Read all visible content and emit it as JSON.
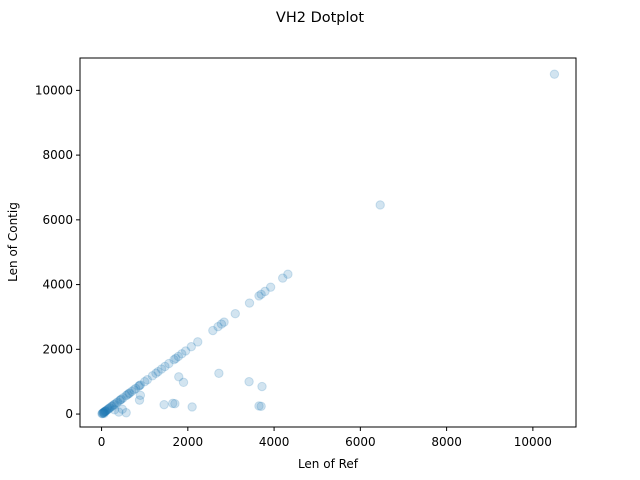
{
  "chart_data": {
    "type": "scatter",
    "title": "VH2 Dotplot",
    "xlabel": "Len of Ref",
    "ylabel": "Len of Contig",
    "xlim": [
      -500,
      11000
    ],
    "ylim": [
      -400,
      11000
    ],
    "xticks": [
      0,
      2000,
      4000,
      6000,
      8000,
      10000
    ],
    "yticks": [
      0,
      2000,
      4000,
      6000,
      8000,
      10000
    ],
    "xtick_labels": [
      "0",
      "2000",
      "4000",
      "6000",
      "8000",
      "10000"
    ],
    "ytick_labels": [
      "0",
      "2000",
      "4000",
      "6000",
      "8000",
      "10000"
    ],
    "grid": false,
    "marker_color": "#1f77b4",
    "marker_alpha": 0.2,
    "series": [
      {
        "x": [
          10500,
          6460,
          4320,
          4200,
          3920,
          3790,
          3700,
          3650,
          3430,
          3100,
          2840,
          2780,
          2700,
          2580,
          2230,
          2080,
          1950,
          1860,
          1780,
          1720,
          1680,
          1560,
          1470,
          1390,
          1310,
          1260,
          1180,
          1060,
          1000,
          900,
          880,
          860,
          790,
          750,
          700,
          650,
          630,
          600,
          570,
          500,
          460,
          440,
          420,
          370,
          340,
          300,
          280,
          250,
          230,
          200,
          180,
          160,
          140,
          120,
          100,
          90,
          80,
          70,
          60,
          50,
          40,
          30,
          20,
          10,
          60,
          3420,
          3720,
          1790,
          1900,
          2720,
          3650,
          3700,
          1700,
          1650,
          1450,
          2100,
          900,
          880,
          570,
          480,
          300,
          400
        ],
        "y": [
          10500,
          6460,
          4320,
          4200,
          3920,
          3790,
          3700,
          3650,
          3430,
          3100,
          2840,
          2780,
          2700,
          2580,
          2230,
          2080,
          1950,
          1860,
          1780,
          1720,
          1680,
          1560,
          1470,
          1390,
          1310,
          1260,
          1180,
          1060,
          1000,
          900,
          880,
          860,
          790,
          750,
          700,
          650,
          630,
          600,
          570,
          500,
          460,
          440,
          420,
          370,
          340,
          300,
          280,
          250,
          230,
          200,
          180,
          160,
          140,
          120,
          100,
          90,
          80,
          70,
          60,
          50,
          40,
          30,
          20,
          10,
          20,
          1000,
          850,
          1150,
          980,
          1260,
          250,
          240,
          320,
          330,
          290,
          220,
          580,
          430,
          40,
          150,
          130,
          60
        ]
      }
    ]
  }
}
